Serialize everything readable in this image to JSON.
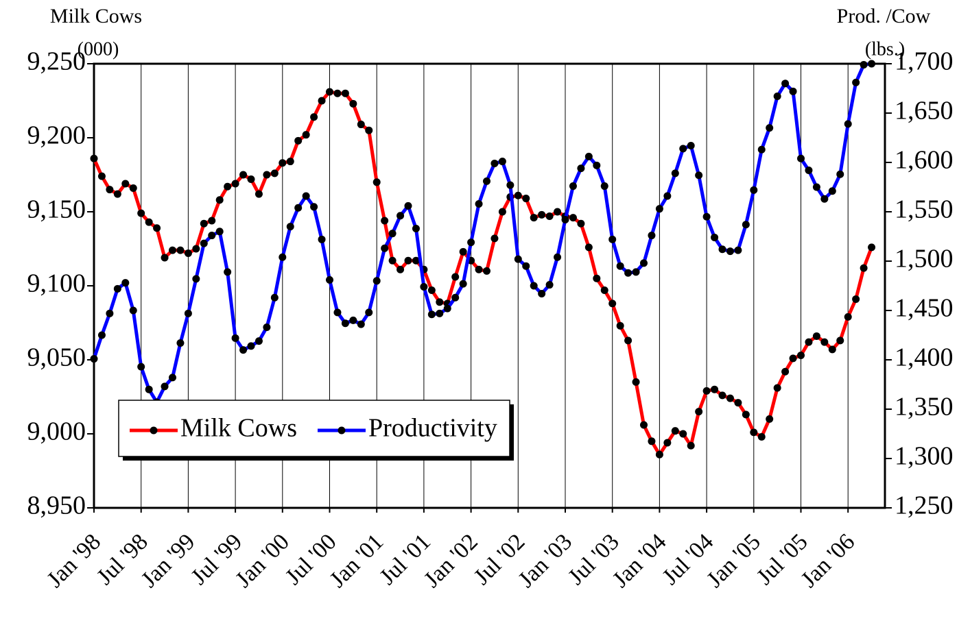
{
  "chart_data": {
    "type": "line",
    "y_label": "Milk Cows",
    "y_unit": "(000)",
    "y2_label": "Prod. /Cow",
    "y2_unit": "(lbs.)",
    "categories": [
      "Jan '98",
      null,
      null,
      null,
      null,
      null,
      "Jul '98",
      null,
      null,
      null,
      null,
      null,
      "Jan '99",
      null,
      null,
      null,
      null,
      null,
      "Jul '99",
      null,
      null,
      null,
      null,
      null,
      "Jan '00",
      null,
      null,
      null,
      null,
      null,
      "Jul '00",
      null,
      null,
      null,
      null,
      null,
      "Jan '01",
      null,
      null,
      null,
      null,
      null,
      "Jul '01",
      null,
      null,
      null,
      null,
      null,
      "Jan '02",
      null,
      null,
      null,
      null,
      null,
      "Jul '02",
      null,
      null,
      null,
      null,
      null,
      "Jan '03",
      null,
      null,
      null,
      null,
      null,
      "Jul '03",
      null,
      null,
      null,
      null,
      null,
      "Jan '04",
      null,
      null,
      null,
      null,
      null,
      "Jul '04",
      null,
      null,
      null,
      null,
      null,
      "Jan '05",
      null,
      null,
      null,
      null,
      null,
      "Jul '05",
      null,
      null,
      null,
      null,
      null,
      "Jan '06",
      null,
      null,
      null
    ],
    "series": [
      {
        "name": "Milk Cows",
        "color": "#ff0000",
        "axis": "y",
        "values": [
          9186,
          9174,
          9165,
          9162,
          9169,
          9166,
          9149,
          9143,
          9139,
          9119,
          9124,
          9124,
          9122,
          9125,
          9142,
          9144,
          9158,
          9167,
          9169,
          9175,
          9172,
          9162,
          9175,
          9176,
          9183,
          9184,
          9198,
          9202,
          9214,
          9225,
          9231,
          9230,
          9230,
          9223,
          9209,
          9205,
          9170,
          9144,
          9117,
          9111,
          9117,
          9117,
          9111,
          9097,
          9089,
          9088,
          9106,
          9123,
          9117,
          9111,
          9110,
          9132,
          9150,
          9160,
          9161,
          9159,
          9146,
          9148,
          9147,
          9150,
          9147,
          9146,
          9142,
          9126,
          9105,
          9097,
          9088,
          9073,
          9063,
          9035,
          9006,
          8995,
          8986,
          8994,
          9002,
          9000,
          8992,
          9015,
          9029,
          9030,
          9026,
          9024,
          9021,
          9013,
          9001,
          8998,
          9010,
          9031,
          9042,
          9051,
          9053,
          9062,
          9066,
          9062,
          9057,
          9063,
          9079,
          9091,
          9112,
          9126
        ]
      },
      {
        "name": "Productivity",
        "color": "#0000ff",
        "axis": "y2",
        "values": [
          1401,
          1425,
          1447,
          1472,
          1478,
          1450,
          1393,
          1370,
          1357,
          1373,
          1382,
          1417,
          1447,
          1482,
          1518,
          1526,
          1530,
          1489,
          1422,
          1410,
          1414,
          1419,
          1433,
          1463,
          1504,
          1535,
          1554,
          1566,
          1555,
          1522,
          1481,
          1448,
          1437,
          1440,
          1436,
          1448,
          1480,
          1513,
          1528,
          1546,
          1556,
          1533,
          1474,
          1446,
          1447,
          1452,
          1463,
          1477,
          1519,
          1558,
          1581,
          1599,
          1601,
          1577,
          1502,
          1495,
          1475,
          1467,
          1476,
          1504,
          1542,
          1576,
          1594,
          1606,
          1597,
          1576,
          1522,
          1495,
          1488,
          1489,
          1498,
          1526,
          1553,
          1566,
          1589,
          1614,
          1617,
          1587,
          1545,
          1524,
          1512,
          1510,
          1511,
          1537,
          1572,
          1613,
          1635,
          1667,
          1680,
          1672,
          1604,
          1592,
          1575,
          1563,
          1571,
          1588,
          1639,
          1681,
          1699,
          1700
        ]
      }
    ],
    "ylim": [
      8950,
      9250
    ],
    "yticks": [
      {
        "value": 8950,
        "label": "8,950"
      },
      {
        "value": 9000,
        "label": "9,000"
      },
      {
        "value": 9050,
        "label": "9,050"
      },
      {
        "value": 9100,
        "label": "9,100"
      },
      {
        "value": 9150,
        "label": "9,150"
      },
      {
        "value": 9200,
        "label": "9,200"
      },
      {
        "value": 9250,
        "label": "9,250"
      }
    ],
    "y2lim": [
      1250,
      1700
    ],
    "y2ticks": [
      {
        "value": 1250,
        "label": "1,250"
      },
      {
        "value": 1300,
        "label": "1,300"
      },
      {
        "value": 1350,
        "label": "1,350"
      },
      {
        "value": 1400,
        "label": "1,400"
      },
      {
        "value": 1450,
        "label": "1,450"
      },
      {
        "value": 1500,
        "label": "1,500"
      },
      {
        "value": 1550,
        "label": "1,550"
      },
      {
        "value": 1600,
        "label": "1,600"
      },
      {
        "value": 1650,
        "label": "1,650"
      },
      {
        "value": 1700,
        "label": "1,700"
      }
    ],
    "x_grid": true,
    "legend": "lower-left"
  }
}
